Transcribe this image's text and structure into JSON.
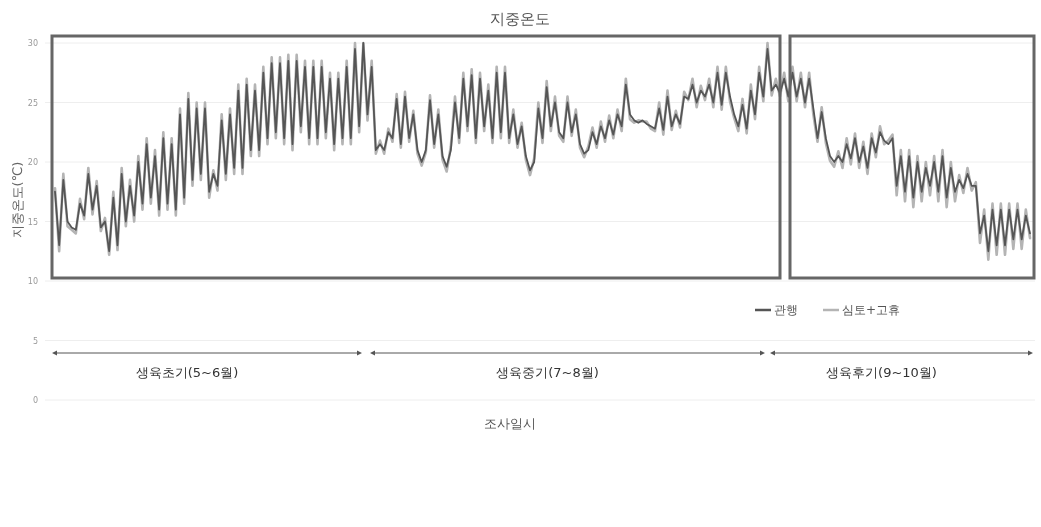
{
  "chart_data": {
    "type": "line",
    "title": "지중온도",
    "xlabel": "조사일시",
    "ylabel": "지중온도(℃)",
    "categories": [
      null,
      null,
      null,
      null,
      null,
      null,
      null,
      null,
      null,
      null,
      null,
      null,
      null,
      null,
      null,
      null,
      null,
      null,
      null,
      null,
      null,
      null,
      null,
      null,
      null,
      null,
      null,
      null,
      null,
      null,
      null,
      null,
      null,
      null,
      null,
      null,
      null,
      null,
      null,
      null,
      null,
      null,
      null,
      null,
      null,
      null,
      null,
      null,
      null,
      null,
      null,
      null,
      null,
      null,
      null,
      null,
      null,
      null,
      null,
      null,
      null,
      null,
      null,
      null,
      null,
      null,
      null,
      null,
      null,
      null,
      null,
      null,
      null,
      null,
      null,
      null,
      null,
      null,
      null,
      null,
      null,
      null,
      null,
      null,
      null,
      null,
      null,
      null,
      null,
      null,
      null,
      null,
      null,
      null,
      null,
      null,
      null,
      null,
      null,
      null,
      null,
      null,
      null,
      null,
      null,
      null,
      null,
      null,
      null,
      null,
      null,
      null,
      null,
      null,
      null,
      null,
      null,
      null,
      null,
      null,
      null,
      null,
      null,
      null,
      null,
      null,
      null,
      null,
      null,
      null,
      null,
      null,
      null,
      null,
      null,
      null,
      null,
      null,
      null,
      null,
      null,
      null,
      null,
      null,
      null,
      null,
      null,
      null,
      null,
      null,
      null,
      null,
      null,
      null,
      null,
      null,
      null,
      null,
      null,
      null,
      null,
      null,
      null,
      null,
      null,
      null,
      null,
      null,
      null,
      null,
      null,
      null,
      null,
      null,
      null,
      null,
      null,
      null,
      null,
      null,
      null,
      null,
      null,
      null,
      null,
      null,
      null,
      null,
      null,
      null,
      null,
      null,
      null,
      null,
      null,
      null,
      null,
      null,
      null,
      null,
      null,
      null,
      null,
      null,
      null,
      null,
      null,
      null,
      null,
      null,
      null,
      null,
      null,
      null,
      null,
      null,
      null,
      null,
      null,
      null,
      null,
      null,
      null,
      null,
      null,
      null,
      null,
      null,
      null,
      null,
      null,
      null,
      null,
      null,
      null
    ],
    "series": [
      {
        "name": "심토+고휴",
        "color": "#b4b4b4",
        "values": [
          17.8,
          12.5,
          19,
          14.6,
          14.3,
          14,
          16.9,
          15.2,
          19.5,
          15.6,
          18.4,
          14.2,
          15.3,
          12.2,
          17.5,
          12.6,
          19.5,
          14.6,
          18.5,
          15,
          20.5,
          16,
          22,
          16.5,
          21,
          15.5,
          22.5,
          16,
          22,
          15.5,
          24.5,
          16.5,
          25.8,
          18,
          25,
          18.5,
          25,
          17,
          19.3,
          17.6,
          24,
          18.5,
          24.5,
          19,
          26.5,
          19,
          27,
          20.5,
          26.5,
          20.5,
          28,
          21.5,
          28.8,
          22,
          28.8,
          21.5,
          29,
          21,
          29,
          22.5,
          28.5,
          21.5,
          28.5,
          21.5,
          28.5,
          22,
          27.5,
          21,
          27.5,
          21.5,
          28.5,
          21.5,
          30,
          22.5,
          30,
          23.5,
          28.5,
          20.7,
          21.8,
          20.7,
          22.8,
          21.7,
          25.7,
          21.2,
          25.9,
          21.7,
          24.3,
          20.7,
          19.7,
          20.8,
          25.6,
          21.2,
          24.4,
          20.2,
          19.2,
          21.3,
          25.5,
          21.6,
          27.5,
          22.6,
          27.8,
          21.6,
          27.5,
          22.6,
          26.5,
          21.6,
          28,
          22,
          28,
          21.6,
          24.4,
          21.2,
          23.3,
          20.2,
          18.9,
          20.3,
          25,
          21.6,
          26.8,
          22.6,
          25.5,
          22.2,
          21.7,
          25.5,
          22.2,
          24.4,
          21.2,
          20.4,
          21.3,
          22.9,
          21.2,
          23.4,
          21.7,
          23.9,
          22,
          24.4,
          22.6,
          27,
          23.6,
          23.3,
          23.5,
          23.4,
          23.4,
          22.8,
          22.6,
          25,
          22.3,
          26,
          22.7,
          24.3,
          22.9,
          25.9,
          25.2,
          27,
          24.6,
          26.4,
          25.2,
          27,
          24.6,
          28,
          24.4,
          28,
          25.1,
          23.7,
          22.6,
          25.3,
          22.4,
          26.5,
          23.6,
          28,
          25.1,
          30,
          25.6,
          27,
          25.5,
          27.5,
          25.1,
          28,
          25.1,
          27.5,
          24.6,
          27.5,
          24,
          21.7,
          24.6,
          21.6,
          20.1,
          19.6,
          20.9,
          19.5,
          22,
          19.8,
          22.4,
          19.5,
          21.7,
          19,
          22.4,
          20.4,
          23,
          21.5,
          21.8,
          22.3,
          17.2,
          21,
          16.7,
          21,
          16.2,
          20.5,
          16.7,
          20,
          17.2,
          20.5,
          16.7,
          21,
          16.2,
          20,
          16.7,
          18.9,
          17.4,
          19.5,
          17.6,
          18.3,
          13.2,
          16,
          11.8,
          16.5,
          12.2,
          16.5,
          12.2,
          16.5,
          12.7,
          16.5,
          12.7,
          16,
          13.6
        ]
      },
      {
        "name": "관행",
        "color": "#555555",
        "values": [
          17.5,
          13,
          18.5,
          15,
          14.5,
          14.3,
          16.5,
          15.5,
          19,
          16,
          18,
          14.5,
          15,
          12.5,
          17,
          13,
          19,
          15,
          18,
          15.5,
          20,
          16.5,
          21.5,
          17,
          20.5,
          16,
          22,
          16.5,
          21.5,
          16,
          24,
          17,
          25.3,
          18.5,
          24.5,
          19,
          24.5,
          17.5,
          19,
          18,
          23.5,
          19,
          24,
          19.5,
          26,
          19.5,
          26.5,
          21,
          26,
          21,
          27.5,
          22,
          28.3,
          22.5,
          28.3,
          22,
          28.5,
          21.5,
          28.5,
          23,
          28,
          22,
          28,
          22,
          28,
          22.5,
          27,
          21.5,
          27,
          22,
          28,
          22,
          29.5,
          23,
          30,
          24,
          28,
          21,
          21.5,
          21,
          22.5,
          22,
          25.3,
          21.5,
          25.5,
          22,
          24,
          21,
          20,
          21,
          25.2,
          21.5,
          24,
          20.5,
          19.6,
          21,
          25,
          22,
          27,
          23,
          27.3,
          22,
          27,
          23,
          26,
          22,
          27.5,
          22.5,
          27.5,
          22,
          24,
          21.5,
          23,
          20.5,
          19.3,
          20,
          24.5,
          22,
          26.3,
          23,
          25,
          22.5,
          22,
          25,
          22.5,
          24,
          21.5,
          20.7,
          21,
          22.5,
          21.5,
          23,
          22,
          23.5,
          22.3,
          24,
          23,
          26.5,
          24,
          23.5,
          23.3,
          23.5,
          23.2,
          23,
          22.8,
          24.5,
          22.7,
          25.5,
          23,
          24,
          23.2,
          25.5,
          25.3,
          26.5,
          25,
          26,
          25.5,
          26.5,
          25,
          27.5,
          24.8,
          27.5,
          25.5,
          24,
          23,
          24.8,
          22.8,
          26,
          24,
          27.5,
          25.5,
          29.5,
          26,
          26.5,
          25.8,
          27,
          25.5,
          27.5,
          25.5,
          27,
          25,
          27,
          24.5,
          22,
          24.2,
          22,
          20.5,
          20,
          20.5,
          20,
          21.5,
          20.3,
          22,
          20,
          21.3,
          19.5,
          22,
          20.8,
          22.5,
          21.8,
          21.5,
          22,
          18,
          20.5,
          17.5,
          20.5,
          17,
          20,
          17.5,
          19.5,
          18,
          20,
          17.5,
          20.5,
          17,
          19.5,
          17.5,
          18.5,
          17.8,
          19,
          18,
          18,
          14,
          15.5,
          12.5,
          16,
          13,
          16,
          13,
          16,
          13.5,
          16,
          13.5,
          15.5,
          14
        ]
      }
    ],
    "ylim": [
      0,
      30
    ],
    "yticks": [
      0,
      5,
      10,
      15,
      20,
      25,
      30
    ],
    "grid": "y",
    "legend": "bottom right",
    "annotations": [
      "생육초기(5~6월)",
      "생육중기(7~8월)",
      "생육후기(9~10월)"
    ]
  }
}
